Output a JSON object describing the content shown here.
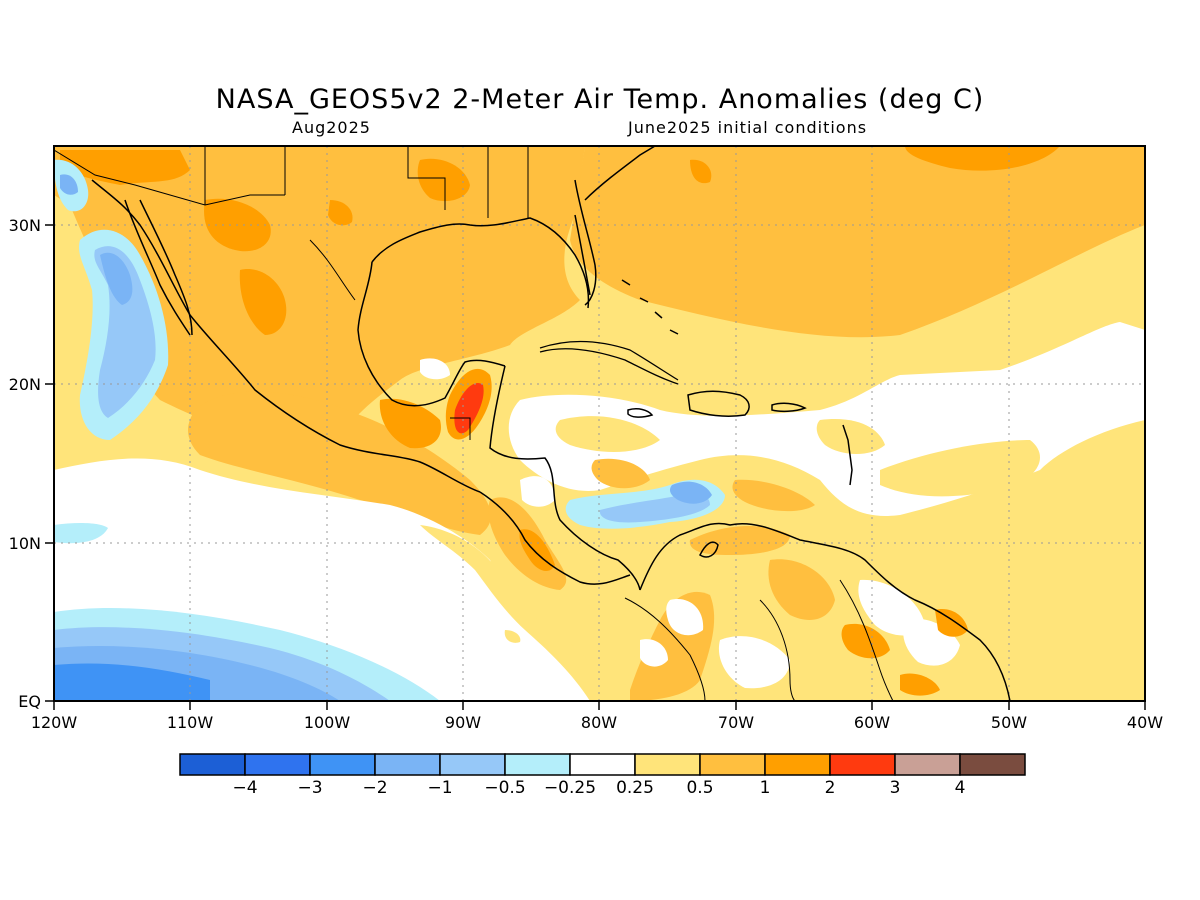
{
  "title": "NASA_GEOS5v2 2-Meter Air Temp. Anomalies (deg C)",
  "subtitle_left": "Aug2025",
  "subtitle_right": "June2025 initial conditions",
  "map": {
    "lon_ticks": [
      "120W",
      "110W",
      "100W",
      "90W",
      "80W",
      "70W",
      "60W",
      "50W",
      "40W"
    ],
    "lat_ticks": [
      "EQ",
      "10N",
      "20N",
      "30N"
    ],
    "extent": {
      "lon": [
        -120,
        -40
      ],
      "lat": [
        0,
        35
      ]
    }
  },
  "colorbar": {
    "colors": [
      "#1c5fd6",
      "#2f73ef",
      "#3f93f5",
      "#7ab4f5",
      "#96c8f8",
      "#b4eefa",
      "#ffffff",
      "#ffe47a",
      "#ffbf3f",
      "#ff9f00",
      "#ff3a0f",
      "#c9a096",
      "#7a4c3f"
    ],
    "labels": [
      "-4",
      "-3",
      "-2",
      "-1",
      "-0.5",
      "-0.25",
      "0.25",
      "0.5",
      "1",
      "2",
      "3",
      "4"
    ]
  }
}
